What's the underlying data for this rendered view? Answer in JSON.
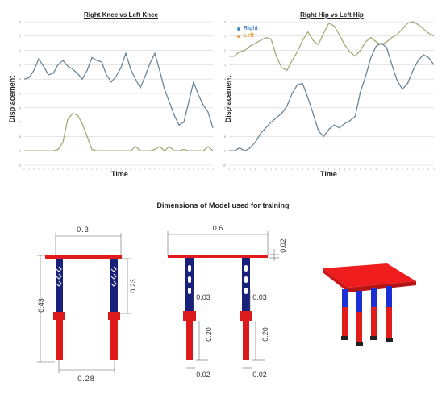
{
  "section_title": "Dimensions of Model used for training",
  "colors": {
    "series_a": "#6d8595",
    "series_b": "#a9a87a",
    "right_legend": "#4e89c9",
    "left_legend": "#e59b2e",
    "leg_blue": "#17207a",
    "leg_red": "#dd1a1a",
    "top_red": "#e11b1b"
  },
  "chart_data": [
    {
      "type": "line",
      "title": "Right Knee vs Left Knee",
      "xlabel": "Time",
      "ylabel": "Displacement",
      "grid": true,
      "ylim": [
        0,
        10
      ],
      "series": [
        {
          "values": [
            6.0,
            6.1,
            6.6,
            7.4,
            6.9,
            6.3,
            6.4,
            7.0,
            7.3,
            6.9,
            6.7,
            6.4,
            6.0,
            6.6,
            7.5,
            7.3,
            7.2,
            6.3,
            5.8,
            6.2,
            6.8,
            7.8,
            6.7,
            6.0,
            5.4,
            6.2,
            7.1,
            7.8,
            6.6,
            5.3,
            4.4,
            3.5,
            2.8,
            3.0,
            4.4,
            5.8,
            4.9,
            4.2,
            3.7,
            2.6
          ]
        },
        {
          "values": [
            1.0,
            1.0,
            1.0,
            1.0,
            1.0,
            1.0,
            1.0,
            1.1,
            1.6,
            3.2,
            3.6,
            3.5,
            2.9,
            2.0,
            1.1,
            1.0,
            1.0,
            1.0,
            1.0,
            1.0,
            1.0,
            1.0,
            1.0,
            1.3,
            1.0,
            1.0,
            1.0,
            1.1,
            1.3,
            1.0,
            1.3,
            1.0,
            1.0,
            1.1,
            1.0,
            1.0,
            1.0,
            1.0,
            1.3,
            1.0
          ]
        }
      ]
    },
    {
      "type": "line",
      "title": "Right Hip vs Left Hip",
      "xlabel": "Time",
      "ylabel": "Displacement",
      "grid": true,
      "ylim": [
        0,
        10
      ],
      "legend": {
        "placement": "top-left",
        "entries": [
          "Right",
          "Left"
        ]
      },
      "series": [
        {
          "name": "Right",
          "values": [
            1.0,
            1.0,
            1.2,
            1.0,
            1.2,
            1.6,
            2.2,
            2.6,
            3.0,
            3.3,
            3.6,
            4.1,
            5.0,
            5.6,
            5.7,
            4.7,
            3.6,
            2.4,
            2.0,
            2.5,
            2.8,
            2.6,
            2.9,
            3.1,
            3.4,
            5.1,
            6.2,
            7.5,
            8.3,
            8.5,
            8.2,
            7.0,
            5.9,
            5.3,
            5.7,
            6.6,
            7.3,
            7.7,
            7.5,
            7.0
          ]
        },
        {
          "name": "Left",
          "values": [
            7.6,
            7.6,
            7.9,
            8.0,
            8.3,
            8.5,
            8.7,
            8.9,
            8.8,
            7.6,
            6.8,
            6.6,
            7.3,
            7.9,
            8.7,
            9.3,
            8.7,
            8.4,
            9.2,
            9.9,
            9.7,
            9.1,
            8.4,
            7.9,
            7.6,
            8.0,
            8.6,
            8.9,
            8.6,
            8.4,
            8.6,
            8.9,
            9.1,
            9.5,
            9.9,
            10.0,
            9.8,
            9.5,
            9.2,
            9.0
          ]
        }
      ]
    }
  ],
  "diagram": {
    "front": {
      "top_width": "0.3",
      "height": "0.43",
      "leg_upper": "0.23",
      "foot_spacing": "0.28"
    },
    "side": {
      "top_width": "0.6",
      "top_thickness": "0.02",
      "joint_gap": "0.03",
      "leg_lower": "0.20",
      "foot": "0.02"
    }
  }
}
